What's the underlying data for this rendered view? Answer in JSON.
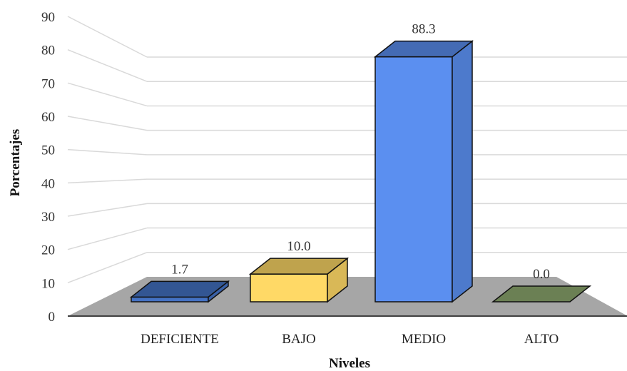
{
  "chart_data": {
    "type": "bar",
    "categories": [
      "DEFICIENTE",
      "BAJO",
      "MEDIO",
      "ALTO"
    ],
    "values": [
      1.7,
      10.0,
      88.3,
      0.0
    ],
    "value_labels": [
      "1.7",
      "10.0",
      "88.3",
      "0.0"
    ],
    "colors": [
      "#4472c4",
      "#ffd966",
      "#5b8ff0",
      "#8faa70"
    ],
    "title": "",
    "xlabel": "Niveles",
    "ylabel": "Porcentajes",
    "ylim": [
      0,
      90
    ],
    "yticks": [
      "0",
      "10",
      "20",
      "30",
      "40",
      "50",
      "60",
      "70",
      "80",
      "90"
    ],
    "grid": true,
    "style": "3d-column"
  }
}
